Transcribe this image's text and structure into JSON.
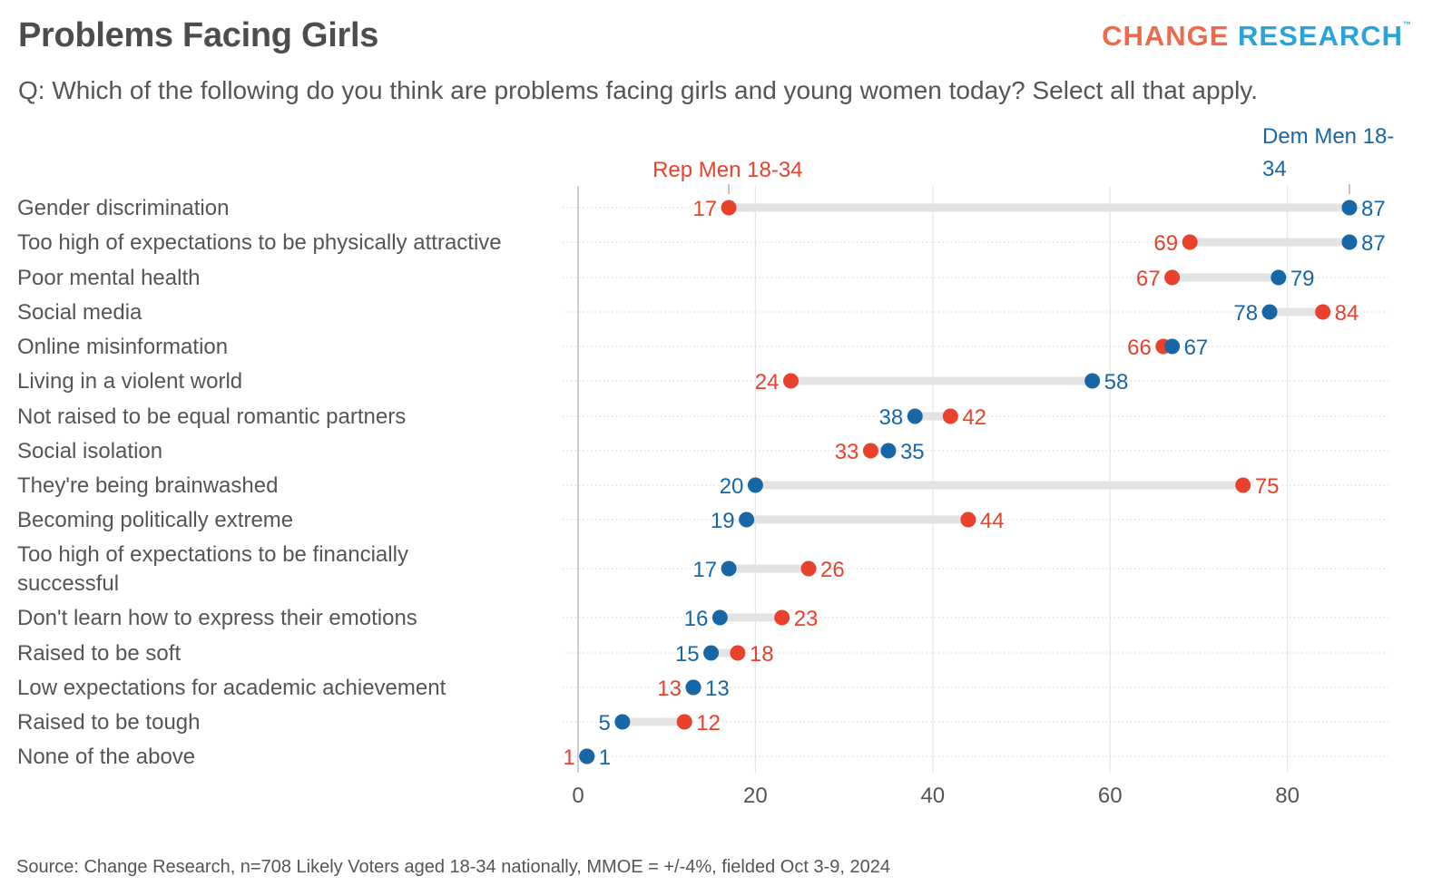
{
  "header": {
    "title": "Problems Facing Girls",
    "logo_part1": "CHANGE",
    "logo_part2": "RESEARCH",
    "logo_tm": "™",
    "subtitle": "Q: Which of the following do you think are problems facing girls and young women today? Select all that apply."
  },
  "footer": {
    "source": "Source: Change Research, n=708 Likely Voters aged 18-34 nationally, MMOE = +/-4%, fielded Oct 3-9, 2024"
  },
  "colors": {
    "rep": "#e8412c",
    "dem": "#1767a6",
    "connector": "#e3e3e3",
    "grid": "#e6e6e6",
    "label": "#555555"
  },
  "chart_data": {
    "type": "dumbbell",
    "xlim": [
      0,
      92
    ],
    "x_ticks": [
      0,
      20,
      40,
      60,
      80
    ],
    "grid": true,
    "series": [
      {
        "name": "Rep Men 18-34",
        "color": "#e8412c",
        "values": [
          17,
          69,
          67,
          84,
          66,
          24,
          42,
          33,
          75,
          44,
          26,
          23,
          18,
          13,
          12,
          1
        ]
      },
      {
        "name": "Dem Men 18-34",
        "color": "#1767a6",
        "values": [
          87,
          87,
          79,
          78,
          67,
          58,
          38,
          35,
          20,
          19,
          17,
          16,
          15,
          13,
          5,
          1
        ]
      }
    ],
    "series_label_lines": [
      [
        "Rep Men 18-34"
      ],
      [
        "Dem Men 18-",
        "34"
      ]
    ],
    "categories": [
      "Gender discrimination",
      "Too high of expectations to be physically attractive",
      "Poor mental health",
      "Social media",
      "Online misinformation",
      "Living in a violent world",
      "Not raised to be equal romantic partners",
      "Social isolation",
      "They're being brainwashed",
      "Becoming politically extreme",
      "Too high of expectations to be financially successful",
      "Don't learn how to express their emotions",
      "Raised to be soft",
      "Low expectations for academic achievement",
      "Raised to be tough",
      "None of the above"
    ],
    "category_label_lines": [
      [
        "Gender discrimination"
      ],
      [
        "Too high of expectations to be physically attractive"
      ],
      [
        "Poor mental health"
      ],
      [
        "Social media"
      ],
      [
        "Online misinformation"
      ],
      [
        "Living in a violent world"
      ],
      [
        "Not raised to be equal romantic partners"
      ],
      [
        "Social isolation"
      ],
      [
        "They're being brainwashed"
      ],
      [
        "Becoming politically extreme"
      ],
      [
        "Too high of expectations to be financially",
        "successful"
      ],
      [
        "Don't learn how to express their emotions"
      ],
      [
        "Raised to be soft"
      ],
      [
        "Low expectations for academic achievement"
      ],
      [
        "Raised to be tough"
      ],
      [
        "None of the above"
      ]
    ]
  }
}
